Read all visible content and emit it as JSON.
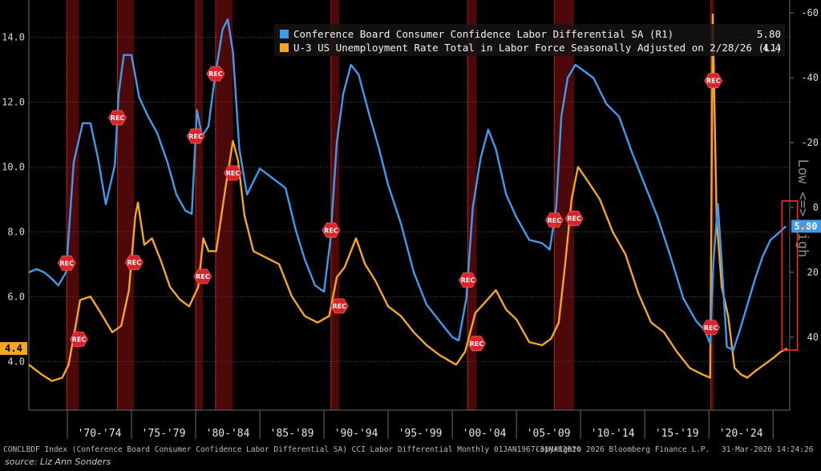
{
  "chart_data": {
    "type": "line",
    "legend": {
      "placement": "top-right",
      "entries": [
        {
          "label": "Conference Board Consumer Confidence Labor Differential SA  (R1)",
          "value": "5.80",
          "color": "#3d9cf0"
        },
        {
          "label": "U-3 US Unemployment Rate Total in Labor Force Seasonally Adjusted on 2/28/26 (L1)",
          "value": "4.4",
          "color": "#f5a623"
        }
      ]
    },
    "x_range": [
      1967,
      2026.3
    ],
    "x_tick_labels": [
      "'70-'74",
      "'75-'79",
      "'80-'84",
      "'85-'89",
      "'90-'94",
      "'95-'99",
      "'00-'04",
      "'05-'09",
      "'10-'14",
      "'15-'19",
      "'20-'24"
    ],
    "left_axis": {
      "ticks": [
        "14.0",
        "12.0",
        "10.0",
        "8.0",
        "6.0",
        "4.0"
      ],
      "range": [
        2.5,
        15.0
      ],
      "last_value_label": "4.4"
    },
    "right_axis": {
      "ticks": [
        "-60",
        "-40",
        "-20",
        "0",
        "20",
        "40"
      ],
      "range": [
        -62.5,
        62.5
      ],
      "reversed": true,
      "last_value_label": "5.80",
      "rotated_label": "Low <=> High"
    },
    "recessions": [
      [
        1969.95,
        1970.9
      ],
      [
        1973.9,
        1975.2
      ],
      [
        1980.0,
        1980.55
      ],
      [
        1981.55,
        1982.9
      ],
      [
        1990.55,
        1991.2
      ],
      [
        2001.2,
        2001.9
      ],
      [
        2007.95,
        2009.5
      ],
      [
        2020.15,
        2020.35
      ]
    ],
    "rec_marker_text": "REC",
    "series": [
      {
        "name": "Conference Board Consumer Confidence Labor Differential SA",
        "axis": "right",
        "color": "#3d9cf0",
        "points": [
          [
            1967.0,
            20
          ],
          [
            1967.6,
            19
          ],
          [
            1968.2,
            20
          ],
          [
            1968.8,
            22
          ],
          [
            1969.3,
            24
          ],
          [
            1969.9,
            20
          ],
          [
            1970.5,
            -14
          ],
          [
            1971.2,
            -26
          ],
          [
            1971.8,
            -26
          ],
          [
            1972.4,
            -15
          ],
          [
            1973.0,
            -1
          ],
          [
            1973.7,
            -13
          ],
          [
            1974.0,
            -35
          ],
          [
            1974.4,
            -47
          ],
          [
            1975.0,
            -47
          ],
          [
            1975.6,
            -34
          ],
          [
            1976.3,
            -28
          ],
          [
            1977.0,
            -23
          ],
          [
            1977.8,
            -14
          ],
          [
            1978.5,
            -4
          ],
          [
            1979.2,
            1
          ],
          [
            1979.7,
            2
          ],
          [
            1980.1,
            -30
          ],
          [
            1980.5,
            -22
          ],
          [
            1981.0,
            -25
          ],
          [
            1981.5,
            -40
          ],
          [
            1982.1,
            -55
          ],
          [
            1982.5,
            -58
          ],
          [
            1982.9,
            -48
          ],
          [
            1983.4,
            -18
          ],
          [
            1984.0,
            -4
          ],
          [
            1985.0,
            -12
          ],
          [
            1986.0,
            -9
          ],
          [
            1987.0,
            -6
          ],
          [
            1987.8,
            7
          ],
          [
            1988.5,
            16
          ],
          [
            1989.3,
            24
          ],
          [
            1990.0,
            26
          ],
          [
            1990.5,
            10
          ],
          [
            1991.0,
            -20
          ],
          [
            1991.5,
            -35
          ],
          [
            1992.1,
            -44
          ],
          [
            1992.7,
            -41
          ],
          [
            1993.5,
            -29
          ],
          [
            1994.3,
            -18
          ],
          [
            1995.0,
            -7
          ],
          [
            1996.0,
            5
          ],
          [
            1997.0,
            20
          ],
          [
            1998.0,
            30
          ],
          [
            1999.0,
            35
          ],
          [
            2000.0,
            40
          ],
          [
            2000.5,
            41
          ],
          [
            2001.1,
            28
          ],
          [
            2001.6,
            0
          ],
          [
            2002.2,
            -15
          ],
          [
            2002.8,
            -24
          ],
          [
            2003.4,
            -18
          ],
          [
            2004.2,
            -4
          ],
          [
            2005.0,
            3
          ],
          [
            2006.0,
            10
          ],
          [
            2007.0,
            11
          ],
          [
            2007.6,
            13
          ],
          [
            2008.1,
            0
          ],
          [
            2008.5,
            -28
          ],
          [
            2009.0,
            -40
          ],
          [
            2009.6,
            -44
          ],
          [
            2010.3,
            -42
          ],
          [
            2011.0,
            -40
          ],
          [
            2012.0,
            -32
          ],
          [
            2013.0,
            -28
          ],
          [
            2014.0,
            -17
          ],
          [
            2015.0,
            -7
          ],
          [
            2016.0,
            3
          ],
          [
            2017.0,
            15
          ],
          [
            2018.0,
            28
          ],
          [
            2019.0,
            35
          ],
          [
            2019.7,
            38
          ],
          [
            2020.1,
            42
          ],
          [
            2020.35,
            17
          ],
          [
            2020.7,
            -1
          ],
          [
            2021.0,
            17
          ],
          [
            2021.4,
            43
          ],
          [
            2021.9,
            44
          ],
          [
            2022.4,
            38
          ],
          [
            2023.0,
            30
          ],
          [
            2023.6,
            22
          ],
          [
            2024.2,
            15
          ],
          [
            2024.8,
            10
          ],
          [
            2025.4,
            8
          ],
          [
            2026.0,
            5.8
          ]
        ]
      },
      {
        "name": "U-3 US Unemployment Rate Total in Labor Force Seasonally Adjusted",
        "axis": "left",
        "color": "#f5a623",
        "points": [
          [
            1967.0,
            3.9
          ],
          [
            1968.0,
            3.6
          ],
          [
            1968.8,
            3.4
          ],
          [
            1969.6,
            3.5
          ],
          [
            1970.1,
            3.9
          ],
          [
            1970.6,
            5.0
          ],
          [
            1971.0,
            5.9
          ],
          [
            1971.8,
            6.0
          ],
          [
            1972.6,
            5.5
          ],
          [
            1973.5,
            4.9
          ],
          [
            1974.2,
            5.1
          ],
          [
            1974.8,
            6.2
          ],
          [
            1975.3,
            8.5
          ],
          [
            1975.5,
            8.9
          ],
          [
            1976.0,
            7.6
          ],
          [
            1976.6,
            7.8
          ],
          [
            1977.3,
            7.1
          ],
          [
            1978.0,
            6.3
          ],
          [
            1978.8,
            5.9
          ],
          [
            1979.5,
            5.7
          ],
          [
            1980.2,
            6.3
          ],
          [
            1980.6,
            7.8
          ],
          [
            1981.0,
            7.4
          ],
          [
            1981.6,
            7.4
          ],
          [
            1982.3,
            9.3
          ],
          [
            1982.9,
            10.8
          ],
          [
            1983.3,
            10.2
          ],
          [
            1983.8,
            8.5
          ],
          [
            1984.5,
            7.4
          ],
          [
            1985.5,
            7.2
          ],
          [
            1986.5,
            7.0
          ],
          [
            1987.5,
            6.0
          ],
          [
            1988.5,
            5.4
          ],
          [
            1989.5,
            5.2
          ],
          [
            1990.4,
            5.4
          ],
          [
            1991.0,
            6.6
          ],
          [
            1991.6,
            6.9
          ],
          [
            1992.5,
            7.8
          ],
          [
            1993.2,
            7.0
          ],
          [
            1994.0,
            6.5
          ],
          [
            1995.0,
            5.7
          ],
          [
            1996.0,
            5.4
          ],
          [
            1997.0,
            4.9
          ],
          [
            1998.0,
            4.5
          ],
          [
            1999.0,
            4.2
          ],
          [
            2000.3,
            3.9
          ],
          [
            2001.0,
            4.3
          ],
          [
            2001.8,
            5.5
          ],
          [
            2002.5,
            5.8
          ],
          [
            2003.4,
            6.2
          ],
          [
            2004.2,
            5.6
          ],
          [
            2005.0,
            5.3
          ],
          [
            2006.0,
            4.6
          ],
          [
            2007.0,
            4.5
          ],
          [
            2007.7,
            4.7
          ],
          [
            2008.3,
            5.2
          ],
          [
            2008.8,
            7.0
          ],
          [
            2009.3,
            9.0
          ],
          [
            2009.8,
            10.0
          ],
          [
            2010.5,
            9.6
          ],
          [
            2011.5,
            9.0
          ],
          [
            2012.5,
            8.0
          ],
          [
            2013.5,
            7.3
          ],
          [
            2014.5,
            6.1
          ],
          [
            2015.5,
            5.2
          ],
          [
            2016.5,
            4.9
          ],
          [
            2017.5,
            4.3
          ],
          [
            2018.5,
            3.8
          ],
          [
            2019.5,
            3.6
          ],
          [
            2020.1,
            3.5
          ],
          [
            2020.3,
            14.7
          ],
          [
            2020.6,
            8.4
          ],
          [
            2021.0,
            6.3
          ],
          [
            2021.5,
            5.4
          ],
          [
            2022.0,
            3.8
          ],
          [
            2022.5,
            3.6
          ],
          [
            2023.0,
            3.5
          ],
          [
            2023.6,
            3.7
          ],
          [
            2024.3,
            3.9
          ],
          [
            2025.0,
            4.1
          ],
          [
            2025.6,
            4.3
          ],
          [
            2026.1,
            4.4
          ]
        ]
      }
    ],
    "highlight_box": {
      "x_range": [
        2025.7,
        2026.9
      ],
      "right_value_range": [
        -2,
        44
      ],
      "color": "#ff2a2a"
    }
  },
  "footer": {
    "left": "CONCLBDF Index (Conference Board Consumer Confidence Labor Differential SA) CCI Labor Differential Monthly 01JAN1967-31MAR2026",
    "copyright": "Copyright© 2026 Bloomberg Finance L.P.",
    "timestamp": "31-Mar-2026 14:24:26",
    "source": "source: Liz Ann Sonders"
  }
}
